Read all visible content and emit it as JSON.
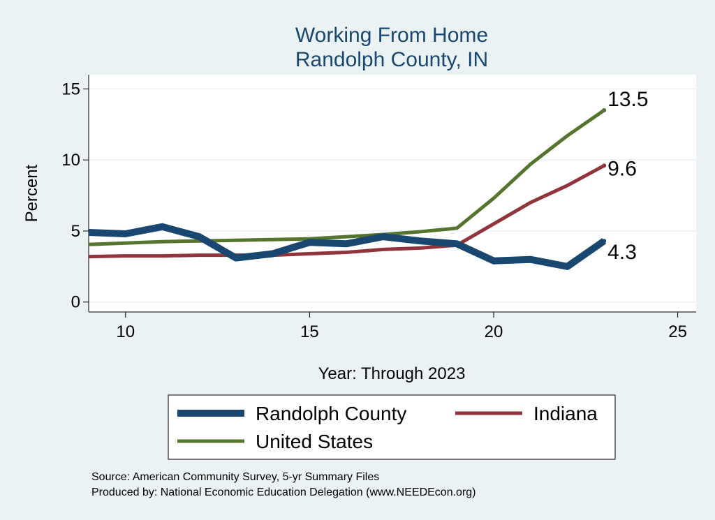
{
  "chart_data": {
    "type": "line",
    "title": [
      "Working From Home",
      "Randolph County, IN"
    ],
    "xlabel": "Year: Through 2023",
    "ylabel": "Percent",
    "xlim": [
      9,
      25.5
    ],
    "ylim": [
      -0.7,
      16
    ],
    "xticks": [
      10,
      15,
      20,
      25
    ],
    "yticks": [
      0,
      5,
      10,
      15
    ],
    "grid": true,
    "x": [
      9,
      10,
      11,
      12,
      13,
      14,
      15,
      16,
      17,
      18,
      19,
      20,
      21,
      22,
      23
    ],
    "series": [
      {
        "name": "Randolph County",
        "color": "#1a476f",
        "values": [
          4.9,
          4.8,
          5.3,
          4.6,
          3.1,
          3.4,
          4.2,
          4.1,
          4.6,
          4.3,
          4.1,
          2.9,
          3.0,
          2.5,
          4.3
        ],
        "end_label": "4.3"
      },
      {
        "name": "Indiana",
        "color": "#90353b",
        "values": [
          3.2,
          3.25,
          3.25,
          3.3,
          3.3,
          3.3,
          3.4,
          3.5,
          3.7,
          3.8,
          4.0,
          5.5,
          7.0,
          8.2,
          9.6
        ],
        "end_label": "9.6"
      },
      {
        "name": "United States",
        "color": "#55752f",
        "values": [
          4.05,
          4.15,
          4.25,
          4.3,
          4.35,
          4.4,
          4.45,
          4.6,
          4.75,
          4.95,
          5.2,
          7.3,
          9.7,
          11.7,
          13.5
        ],
        "end_label": "13.5"
      }
    ],
    "legend": {
      "position": "bottom",
      "entries": [
        "Randolph County",
        "Indiana",
        "United States"
      ]
    },
    "notes": [
      "Source: American Community Survey, 5-yr Summary Files",
      "Produced by: National Economic Education Delegation (www.NEEDEcon.org)"
    ]
  }
}
